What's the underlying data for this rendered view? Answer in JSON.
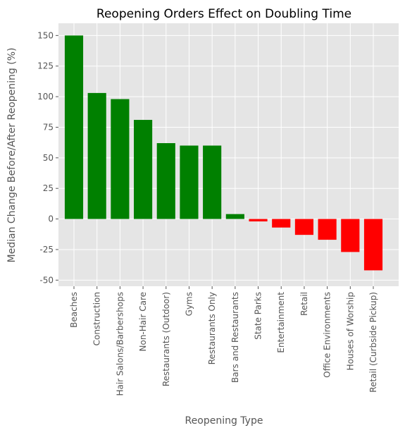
{
  "chart_data": {
    "type": "bar",
    "title": "Reopening Orders Effect on Doubling Time",
    "xlabel": "Reopening Type",
    "ylabel": "Median Change Before/After Reopening (%)",
    "categories": [
      "Beaches",
      "Construction",
      "Hair Salons/Barbershops",
      "Non-Hair Care",
      "Restaurants (Outdoor)",
      "Gyms",
      "Restaurants Only",
      "Bars and Restaurants",
      "State Parks",
      "Entertainment",
      "Retail",
      "Office Environments",
      "Houses of Worship",
      "Retail (Curbside Pickup)"
    ],
    "values": [
      150,
      103,
      98,
      81,
      62,
      60,
      60,
      4,
      -2,
      -7,
      -13,
      -17,
      -27,
      -42
    ],
    "ylim": [
      -55,
      160
    ],
    "yticks": [
      -50,
      -25,
      0,
      25,
      50,
      75,
      100,
      125,
      150
    ],
    "grid": true,
    "colors": {
      "positive": "#008000",
      "negative": "#ff0000",
      "plot_background": "#e5e5e5",
      "grid": "#ffffff"
    }
  }
}
